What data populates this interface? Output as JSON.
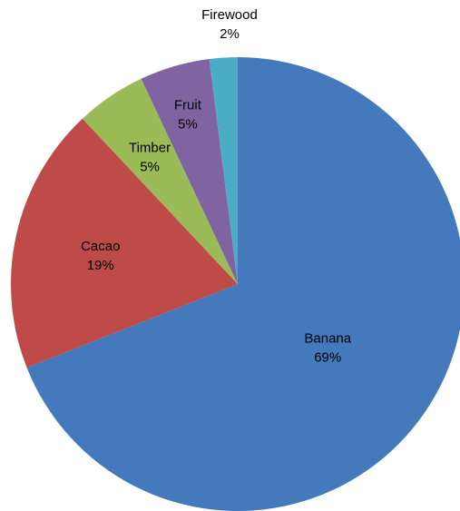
{
  "chart_data": {
    "type": "pie",
    "title": "",
    "start_angle_deg": 0,
    "direction": "clockwise",
    "slices": [
      {
        "label": "Banana",
        "value": 69,
        "display": "69%",
        "color": "#4479BC"
      },
      {
        "label": "Cacao",
        "value": 19,
        "display": "19%",
        "color": "#BE4B48"
      },
      {
        "label": "Timber",
        "value": 5,
        "display": "5%",
        "color": "#9BBB59"
      },
      {
        "label": "Fruit",
        "value": 5,
        "display": "5%",
        "color": "#8064A2"
      },
      {
        "label": "Firewood",
        "value": 2,
        "display": "2%",
        "color": "#4BACC6"
      }
    ],
    "legend": "none"
  }
}
